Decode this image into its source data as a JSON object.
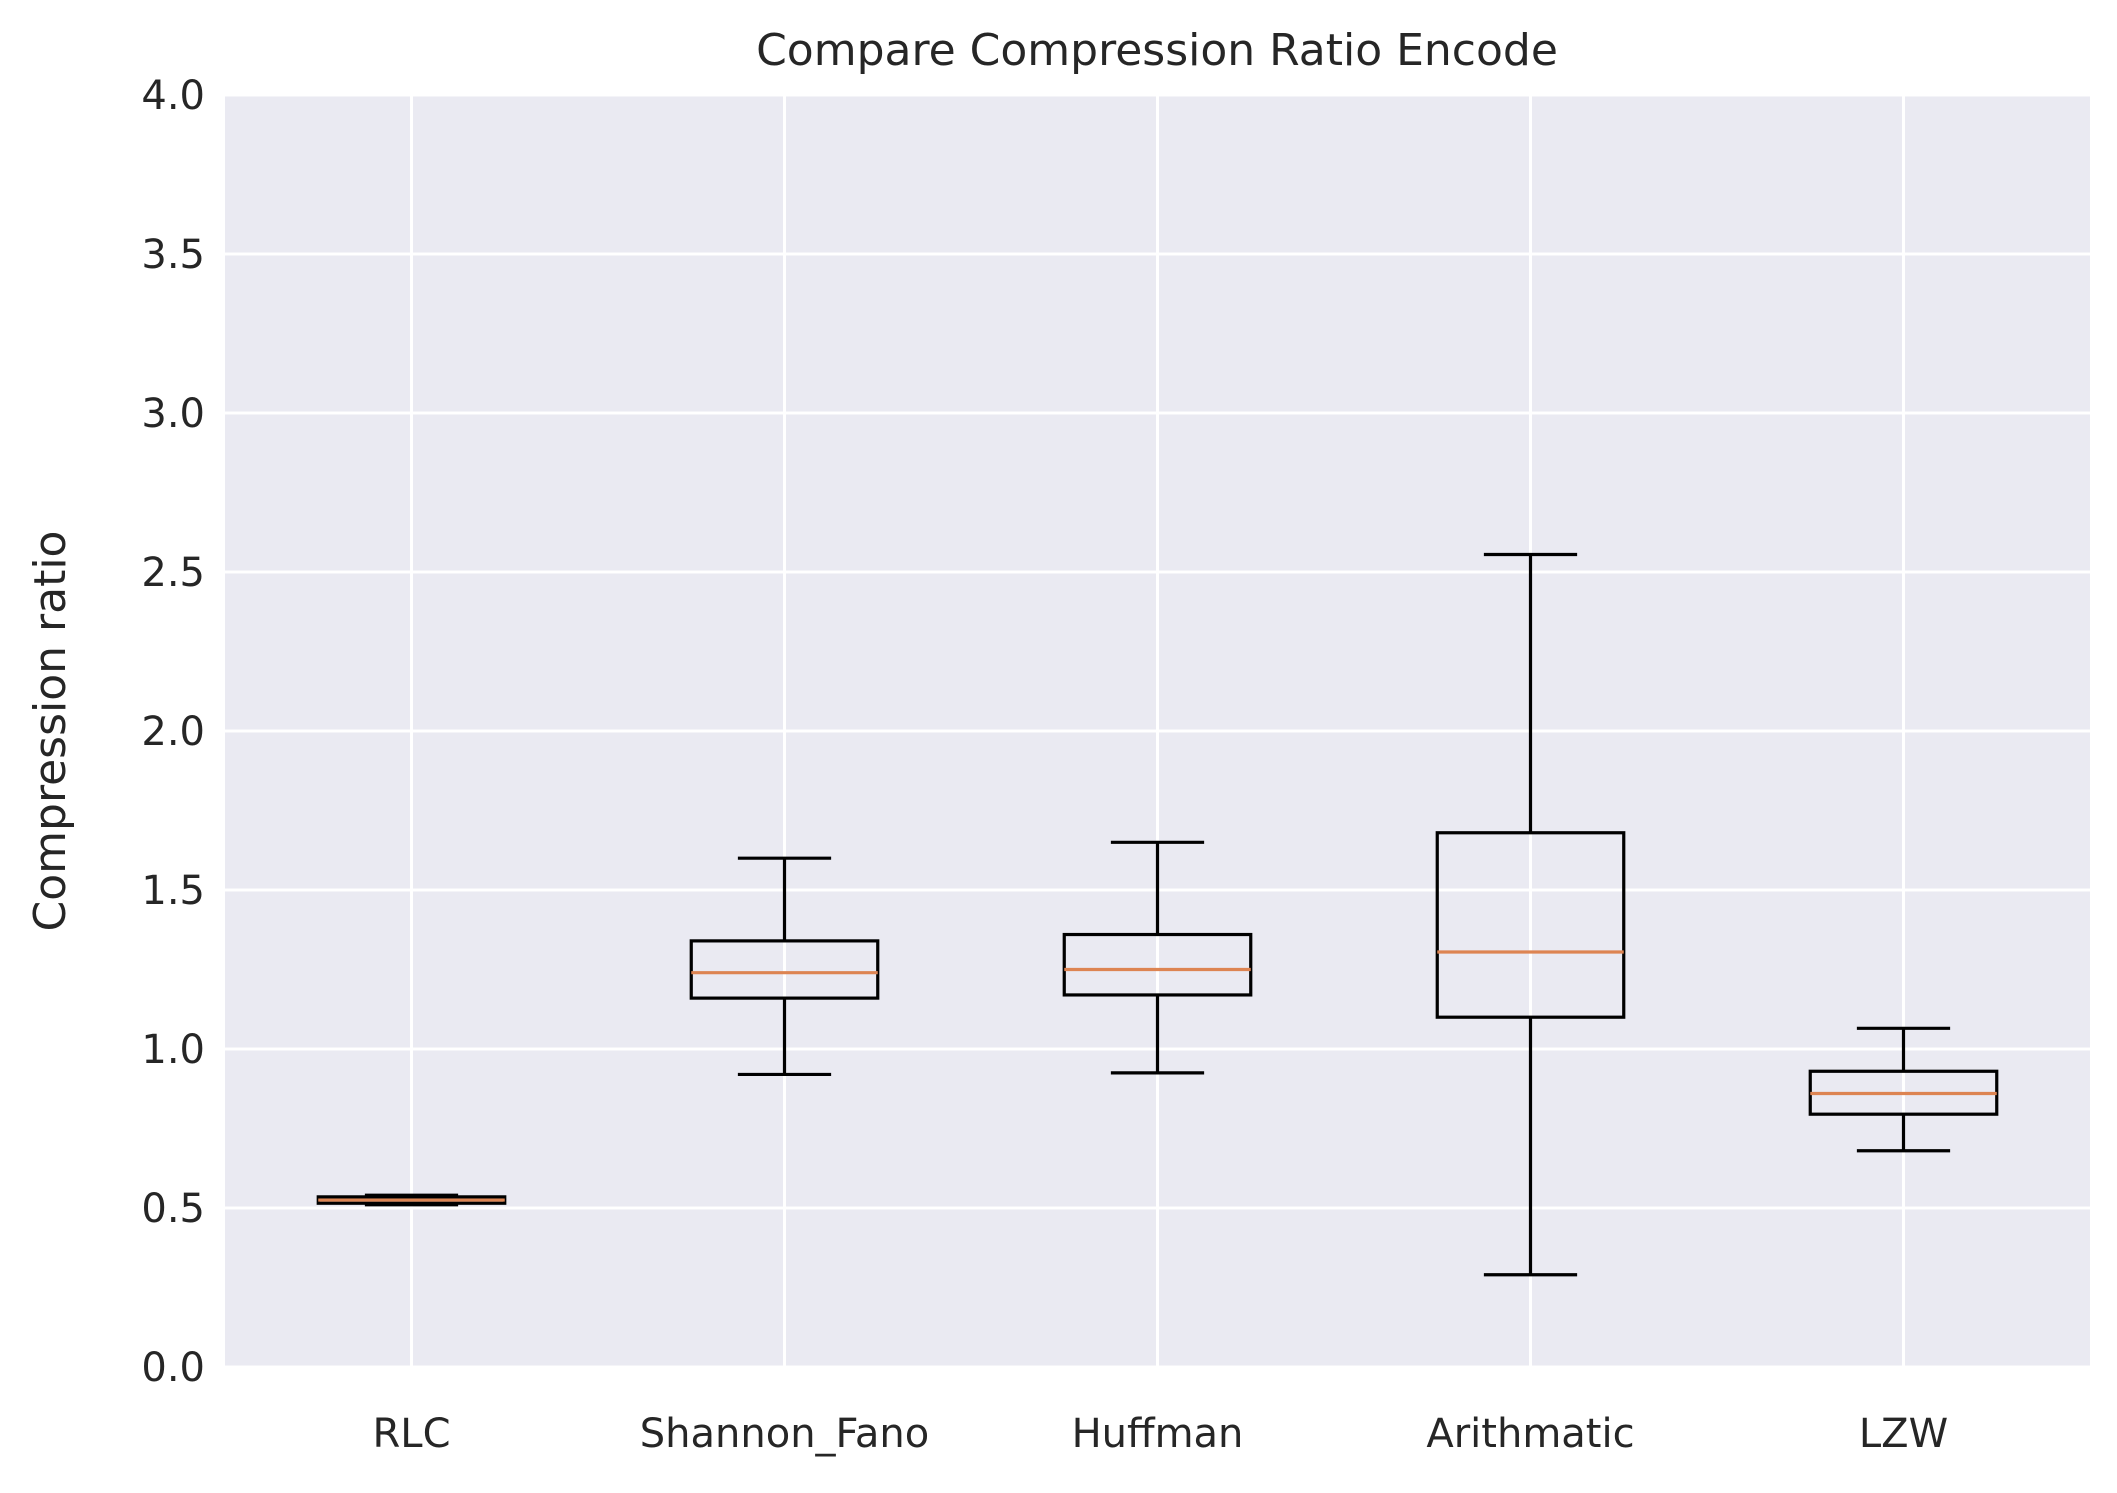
{
  "chart_data": {
    "type": "box",
    "title": "Compare Compression Ratio Encode",
    "xlabel": "",
    "ylabel": "Compression ratio",
    "ylim": [
      0,
      4
    ],
    "yticks": [
      "0.0",
      "0.5",
      "1.0",
      "1.5",
      "2.0",
      "2.5",
      "3.0",
      "3.5",
      "4.0"
    ],
    "grid": true,
    "categories": [
      "RLC",
      "Shannon_Fano",
      "Huffman",
      "Arithmatic",
      "LZW"
    ],
    "boxes": [
      {
        "name": "RLC",
        "whisker_low": 0.51,
        "q1": 0.515,
        "median": 0.525,
        "q3": 0.535,
        "whisker_high": 0.54
      },
      {
        "name": "Shannon_Fano",
        "whisker_low": 0.92,
        "q1": 1.16,
        "median": 1.24,
        "q3": 1.34,
        "whisker_high": 1.6
      },
      {
        "name": "Huffman",
        "whisker_low": 0.925,
        "q1": 1.17,
        "median": 1.25,
        "q3": 1.36,
        "whisker_high": 1.65
      },
      {
        "name": "Arithmatic",
        "whisker_low": 0.29,
        "q1": 1.1,
        "median": 1.305,
        "q3": 1.68,
        "whisker_high": 2.555
      },
      {
        "name": "LZW",
        "whisker_low": 0.68,
        "q1": 0.795,
        "median": 0.86,
        "q3": 0.93,
        "whisker_high": 1.065
      }
    ],
    "colors": {
      "background": "#eaeaf2",
      "grid": "#ffffff",
      "box": "#000000",
      "median": "#dd8452"
    }
  }
}
